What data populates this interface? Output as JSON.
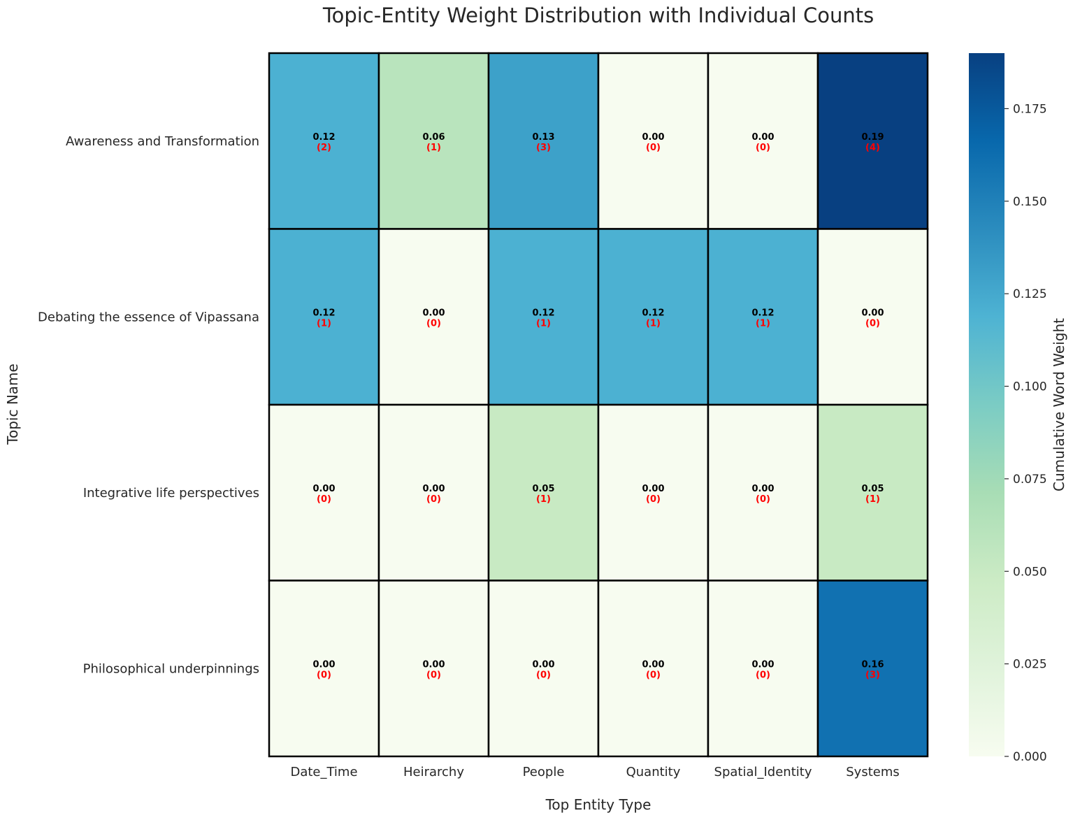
{
  "chart_data": {
    "type": "heatmap",
    "title": "Topic-Entity Weight Distribution with Individual Counts",
    "xlabel": "Top Entity Type",
    "ylabel": "Topic Name",
    "colorbar_label": "Cumulative Word Weight",
    "colormap": "GnBu",
    "vmin": 0.0,
    "vmax": 0.19,
    "colorbar_ticks": [
      "0.000",
      "0.025",
      "0.050",
      "0.075",
      "0.100",
      "0.125",
      "0.150",
      "0.175"
    ],
    "colorbar_tick_values": [
      0.0,
      0.025,
      0.05,
      0.075,
      0.1,
      0.125,
      0.15,
      0.175
    ],
    "columns": [
      "Date_Time",
      "Heirarchy",
      "People",
      "Quantity",
      "Spatial_Identity",
      "Systems"
    ],
    "rows": [
      "Awareness and Transformation",
      "Debating the essence of Vipassana",
      "Integrative life perspectives",
      "Philosophical underpinnings"
    ],
    "values": [
      [
        0.12,
        0.06,
        0.13,
        0.0,
        0.0,
        0.19
      ],
      [
        0.12,
        0.0,
        0.12,
        0.12,
        0.12,
        0.0
      ],
      [
        0.0,
        0.0,
        0.05,
        0.0,
        0.0,
        0.05
      ],
      [
        0.0,
        0.0,
        0.0,
        0.0,
        0.0,
        0.16
      ]
    ],
    "value_labels": [
      [
        "0.12",
        "0.06",
        "0.13",
        "0.00",
        "0.00",
        "0.19"
      ],
      [
        "0.12",
        "0.00",
        "0.12",
        "0.12",
        "0.12",
        "0.00"
      ],
      [
        "0.00",
        "0.00",
        "0.05",
        "0.00",
        "0.00",
        "0.05"
      ],
      [
        "0.00",
        "0.00",
        "0.00",
        "0.00",
        "0.00",
        "0.16"
      ]
    ],
    "count_labels": [
      [
        "(2)",
        "(1)",
        "(3)",
        "(0)",
        "(0)",
        "(4)"
      ],
      [
        "(1)",
        "(0)",
        "(1)",
        "(1)",
        "(1)",
        "(0)"
      ],
      [
        "(0)",
        "(0)",
        "(1)",
        "(0)",
        "(0)",
        "(1)"
      ],
      [
        "(0)",
        "(0)",
        "(0)",
        "(0)",
        "(0)",
        "(3)"
      ]
    ],
    "colors": {
      "cell_border": "#000000",
      "value_text": "#000000",
      "count_text": "#ff0000"
    }
  }
}
